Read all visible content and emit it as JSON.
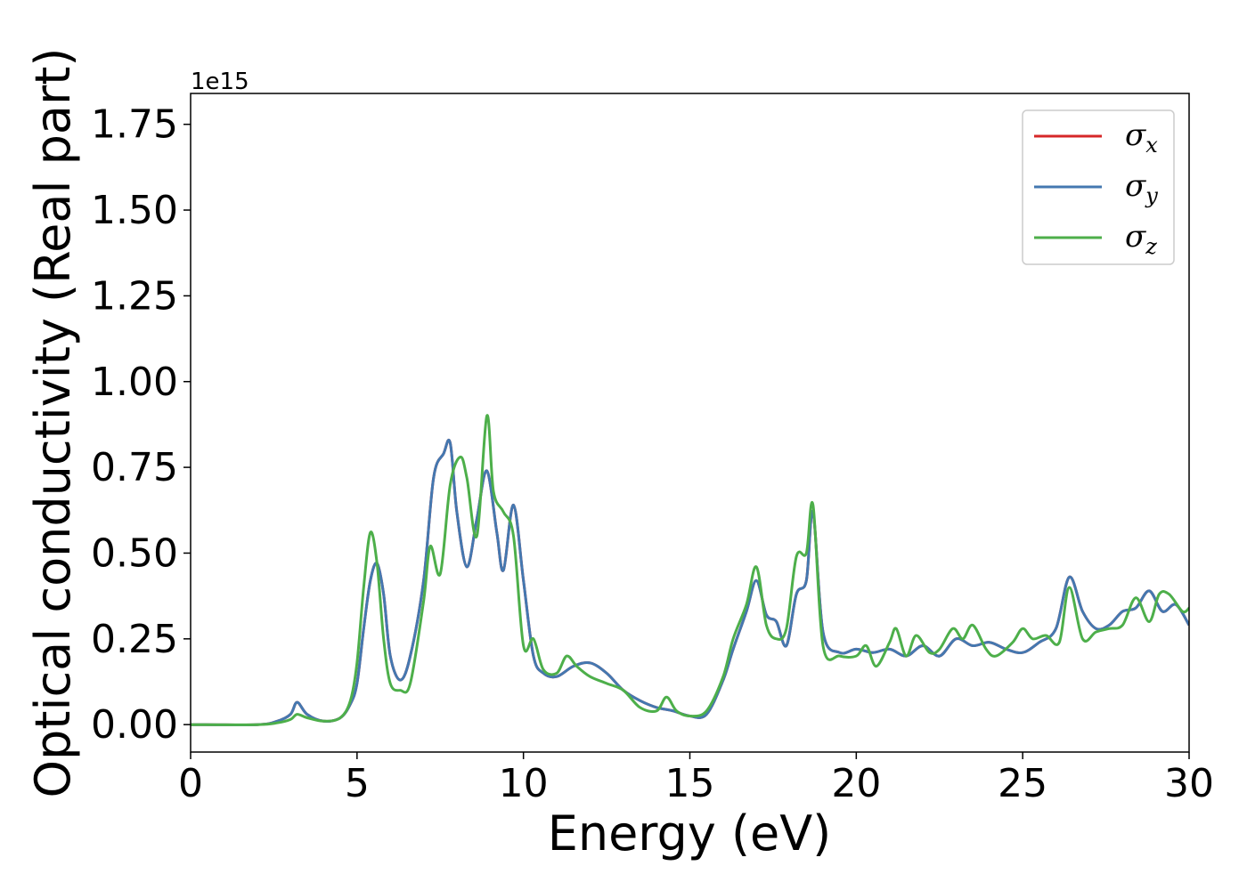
{
  "chart_data": {
    "type": "line",
    "title": "",
    "xlabel": "Energy (eV)",
    "ylabel": "Optical conductivity (Real part)",
    "y_offset_label": "1e15",
    "xlim": [
      0,
      30
    ],
    "ylim": [
      -0.08,
      1.84
    ],
    "x_ticks": [
      0,
      5,
      10,
      15,
      20,
      25,
      30
    ],
    "x_tick_labels": [
      "0",
      "5",
      "10",
      "15",
      "20",
      "25",
      "30"
    ],
    "y_ticks": [
      0,
      0.25,
      0.5,
      0.75,
      1.0,
      1.25,
      1.5,
      1.75
    ],
    "y_tick_labels": [
      "0.00",
      "0.25",
      "0.50",
      "0.75",
      "1.00",
      "1.25",
      "1.50",
      "1.75"
    ],
    "grid": false,
    "legend_position": "top-right",
    "series": [
      {
        "name": "σx",
        "legend_symbol": "σ",
        "legend_sub": "x",
        "color": "#d62728",
        "x": [
          0,
          2,
          2.6,
          3.0,
          3.2,
          3.5,
          4.0,
          4.5,
          4.8,
          5.0,
          5.2,
          5.4,
          5.6,
          5.8,
          6.0,
          6.3,
          6.6,
          7.0,
          7.3,
          7.6,
          7.8,
          8.0,
          8.3,
          8.6,
          8.9,
          9.2,
          9.4,
          9.7,
          10.0,
          10.3,
          10.6,
          11.0,
          11.5,
          12.0,
          12.5,
          13.0,
          13.5,
          14.0,
          14.5,
          15.0,
          15.5,
          16.0,
          16.3,
          16.7,
          17.0,
          17.3,
          17.6,
          17.9,
          18.2,
          18.5,
          18.7,
          19.0,
          19.5,
          20,
          20.5,
          21,
          21.5,
          22,
          22.5,
          23,
          23.5,
          24,
          24.5,
          25,
          25.5,
          26,
          26.4,
          26.8,
          27.2,
          27.6,
          28.0,
          28.4,
          28.8,
          29.2,
          29.6,
          30
        ],
        "y": [
          0,
          0,
          0.01,
          0.03,
          0.065,
          0.03,
          0.01,
          0.02,
          0.06,
          0.12,
          0.28,
          0.42,
          0.47,
          0.38,
          0.2,
          0.13,
          0.2,
          0.42,
          0.72,
          0.79,
          0.82,
          0.62,
          0.46,
          0.6,
          0.74,
          0.56,
          0.45,
          0.64,
          0.42,
          0.2,
          0.15,
          0.14,
          0.17,
          0.18,
          0.15,
          0.1,
          0.07,
          0.05,
          0.04,
          0.025,
          0.03,
          0.13,
          0.22,
          0.33,
          0.42,
          0.32,
          0.3,
          0.23,
          0.38,
          0.42,
          0.62,
          0.27,
          0.21,
          0.22,
          0.21,
          0.22,
          0.2,
          0.23,
          0.2,
          0.25,
          0.23,
          0.24,
          0.22,
          0.21,
          0.24,
          0.28,
          0.43,
          0.33,
          0.28,
          0.29,
          0.33,
          0.34,
          0.39,
          0.33,
          0.35,
          0.29
        ]
      },
      {
        "name": "σy",
        "legend_symbol": "σ",
        "legend_sub": "y",
        "color": "#4478b0",
        "x": [
          0,
          2,
          2.6,
          3.0,
          3.2,
          3.5,
          4.0,
          4.5,
          4.8,
          5.0,
          5.2,
          5.4,
          5.6,
          5.8,
          6.0,
          6.3,
          6.6,
          7.0,
          7.3,
          7.6,
          7.8,
          8.0,
          8.3,
          8.6,
          8.9,
          9.2,
          9.4,
          9.7,
          10.0,
          10.3,
          10.6,
          11.0,
          11.5,
          12.0,
          12.5,
          13.0,
          13.5,
          14.0,
          14.5,
          15.0,
          15.5,
          16.0,
          16.3,
          16.7,
          17.0,
          17.3,
          17.6,
          17.9,
          18.2,
          18.5,
          18.7,
          19.0,
          19.5,
          20,
          20.5,
          21,
          21.5,
          22,
          22.5,
          23,
          23.5,
          24,
          24.5,
          25,
          25.5,
          26,
          26.4,
          26.8,
          27.2,
          27.6,
          28.0,
          28.4,
          28.8,
          29.2,
          29.6,
          30
        ],
        "y": [
          0,
          0,
          0.01,
          0.03,
          0.065,
          0.03,
          0.01,
          0.02,
          0.06,
          0.12,
          0.28,
          0.42,
          0.47,
          0.38,
          0.2,
          0.13,
          0.2,
          0.42,
          0.72,
          0.79,
          0.82,
          0.62,
          0.46,
          0.6,
          0.74,
          0.56,
          0.45,
          0.64,
          0.42,
          0.2,
          0.15,
          0.14,
          0.17,
          0.18,
          0.15,
          0.1,
          0.07,
          0.05,
          0.04,
          0.025,
          0.03,
          0.13,
          0.22,
          0.33,
          0.42,
          0.32,
          0.3,
          0.23,
          0.38,
          0.42,
          0.62,
          0.27,
          0.21,
          0.22,
          0.21,
          0.22,
          0.2,
          0.23,
          0.2,
          0.25,
          0.23,
          0.24,
          0.22,
          0.21,
          0.24,
          0.28,
          0.43,
          0.33,
          0.28,
          0.29,
          0.33,
          0.34,
          0.39,
          0.33,
          0.35,
          0.29
        ]
      },
      {
        "name": "σz",
        "legend_symbol": "σ",
        "legend_sub": "z",
        "color": "#4daf4a",
        "x": [
          0,
          2,
          2.6,
          3.0,
          3.2,
          3.5,
          4.0,
          4.5,
          4.8,
          5.0,
          5.2,
          5.4,
          5.6,
          5.8,
          6.0,
          6.3,
          6.6,
          7.0,
          7.2,
          7.5,
          7.8,
          8.1,
          8.3,
          8.6,
          8.9,
          9.1,
          9.4,
          9.7,
          10.0,
          10.3,
          10.6,
          11.0,
          11.3,
          11.6,
          12.0,
          12.5,
          13.0,
          13.5,
          14.0,
          14.3,
          14.6,
          15.0,
          15.5,
          16.0,
          16.3,
          16.7,
          17.0,
          17.3,
          17.6,
          17.9,
          18.2,
          18.5,
          18.7,
          19.0,
          19.5,
          20,
          20.3,
          20.6,
          21,
          21.2,
          21.5,
          21.8,
          22.2,
          22.5,
          22.9,
          23.2,
          23.5,
          23.9,
          24.2,
          24.7,
          25,
          25.3,
          25.7,
          26.1,
          26.4,
          26.8,
          27.2,
          27.6,
          28.0,
          28.4,
          28.8,
          29.1,
          29.4,
          29.8,
          30
        ],
        "y": [
          0,
          0,
          0.005,
          0.015,
          0.03,
          0.02,
          0.01,
          0.02,
          0.07,
          0.18,
          0.4,
          0.56,
          0.47,
          0.25,
          0.12,
          0.1,
          0.12,
          0.36,
          0.52,
          0.44,
          0.7,
          0.78,
          0.72,
          0.55,
          0.9,
          0.68,
          0.62,
          0.55,
          0.23,
          0.25,
          0.16,
          0.15,
          0.2,
          0.17,
          0.14,
          0.12,
          0.1,
          0.05,
          0.04,
          0.08,
          0.04,
          0.025,
          0.04,
          0.14,
          0.25,
          0.35,
          0.46,
          0.29,
          0.25,
          0.28,
          0.49,
          0.5,
          0.64,
          0.23,
          0.2,
          0.2,
          0.23,
          0.17,
          0.24,
          0.28,
          0.2,
          0.26,
          0.21,
          0.22,
          0.28,
          0.25,
          0.29,
          0.22,
          0.2,
          0.24,
          0.28,
          0.25,
          0.26,
          0.24,
          0.4,
          0.25,
          0.27,
          0.28,
          0.29,
          0.37,
          0.3,
          0.38,
          0.38,
          0.33,
          0.34
        ]
      }
    ]
  }
}
